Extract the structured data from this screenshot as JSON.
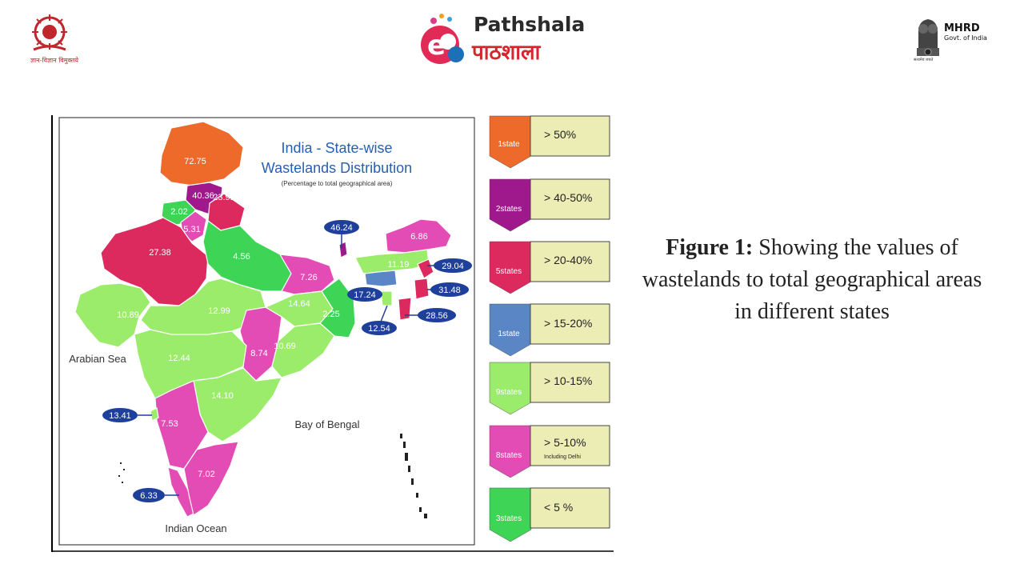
{
  "header": {
    "ugc_caption": "ज्ञान-विज्ञान विमुक्तये",
    "epathshala_name": "Pathshala",
    "epathshala_e": "e",
    "epathshala_hindi": "पाठशाला",
    "mhrd_title": "MHRD",
    "mhrd_subtitle": "Govt. of India",
    "mhrd_motto": "सत्यमेव जयते"
  },
  "map": {
    "title_line1": "India - State-wise",
    "title_line2": "Wastelands Distribution",
    "subtitle": "(Percentage to total geographical area)",
    "sea_labels": {
      "arabian": "Arabian Sea",
      "bengal": "Bay of Bengal",
      "indian": "Indian Ocean"
    },
    "state_values": [
      {
        "value": "72.75",
        "category": "gt50"
      },
      {
        "value": "40.36",
        "category": "40to50"
      },
      {
        "value": "2.02",
        "category": "lt5"
      },
      {
        "value": "5.31",
        "category": "5to10"
      },
      {
        "value": "23.91",
        "category": "20to40"
      },
      {
        "value": "27.38",
        "category": "20to40"
      },
      {
        "value": "4.56",
        "category": "lt5"
      },
      {
        "value": "7.26",
        "category": "5to10"
      },
      {
        "value": "10.89",
        "category": "10to15"
      },
      {
        "value": "12.99",
        "category": "10to15"
      },
      {
        "value": "14.64",
        "category": "10to15"
      },
      {
        "value": "2.25",
        "category": "lt5"
      },
      {
        "value": "8.74",
        "category": "5to10"
      },
      {
        "value": "10.69",
        "category": "10to15"
      },
      {
        "value": "12.44",
        "category": "10to15"
      },
      {
        "value": "14.10",
        "category": "10to15"
      },
      {
        "value": "7.53",
        "category": "5to10"
      },
      {
        "value": "7.02",
        "category": "5to10"
      },
      {
        "value": "6.86",
        "category": "5to10"
      },
      {
        "value": "11.19",
        "category": "10to15"
      }
    ],
    "callouts": [
      {
        "value": "46.24",
        "category": "40to50"
      },
      {
        "value": "29.04",
        "category": "20to40"
      },
      {
        "value": "31.48",
        "category": "20to40"
      },
      {
        "value": "17.24",
        "category": "15to20"
      },
      {
        "value": "12.54",
        "category": "10to15"
      },
      {
        "value": "28.56",
        "category": "20to40"
      },
      {
        "value": "13.41",
        "category": "10to15"
      },
      {
        "value": "6.33",
        "category": "5to10"
      }
    ]
  },
  "legend": [
    {
      "count": "1state",
      "range": "> 50%",
      "note": "",
      "color": "#ee6a2a"
    },
    {
      "count": "2states",
      "range": "> 40-50%",
      "note": "",
      "color": "#a0198c"
    },
    {
      "count": "5states",
      "range": "> 20-40%",
      "note": "",
      "color": "#dc2a5e"
    },
    {
      "count": "1state",
      "range": "> 15-20%",
      "note": "",
      "color": "#5a86c6"
    },
    {
      "count": "9states",
      "range": "> 10-15%",
      "note": "",
      "color": "#9cec6c"
    },
    {
      "count": "8states",
      "range": "> 5-10%",
      "note": "Including Delhi",
      "color": "#e24cb4"
    },
    {
      "count": "3states",
      "range": "< 5 %",
      "note": "",
      "color": "#3ed456"
    }
  ],
  "colors": {
    "gt50": "#ee6a2a",
    "40to50": "#a0198c",
    "20to40": "#dc2a5e",
    "15to20": "#5a86c6",
    "10to15": "#9cec6c",
    "5to10": "#e24cb4",
    "lt5": "#3ed456",
    "callout_bg": "#1e3f9a",
    "legend_box": "#ecedb5",
    "title_blue": "#2860b0"
  },
  "caption": {
    "bold": "Figure 1:",
    "text": " Showing the values of wastelands to total geographical areas in different states"
  }
}
